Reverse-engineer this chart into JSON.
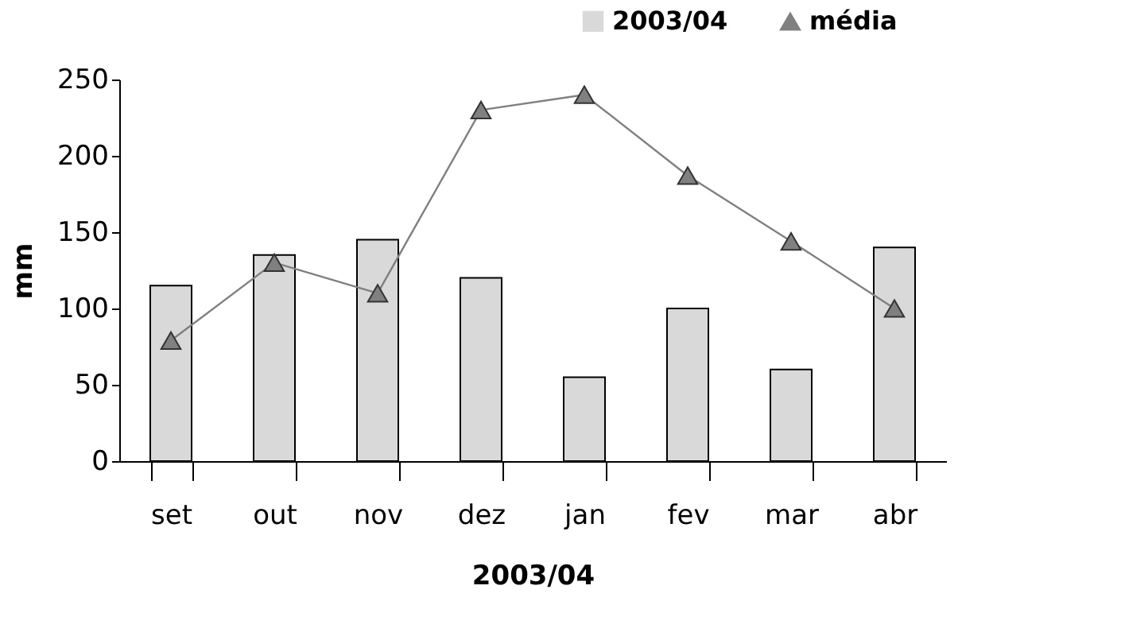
{
  "chart_data": {
    "type": "bar",
    "xlabel": "2003/04",
    "ylabel": "mm",
    "categories": [
      "set",
      "out",
      "nov",
      "dez",
      "jan",
      "fev",
      "mar",
      "abr"
    ],
    "series": [
      {
        "name": "2003/04",
        "color": "#d9d9d9",
        "values": [
          115,
          135,
          145,
          120,
          55,
          100,
          60,
          140
        ]
      },
      {
        "name": "média",
        "type": "line",
        "color": "#808080",
        "marker": "triangle",
        "values": [
          79,
          130,
          110,
          230,
          240,
          187,
          144,
          100
        ]
      }
    ],
    "ylim": [
      0,
      250
    ],
    "yticks": [
      0,
      50,
      100,
      150,
      200,
      250
    ],
    "grid": false,
    "legend": "top right"
  }
}
